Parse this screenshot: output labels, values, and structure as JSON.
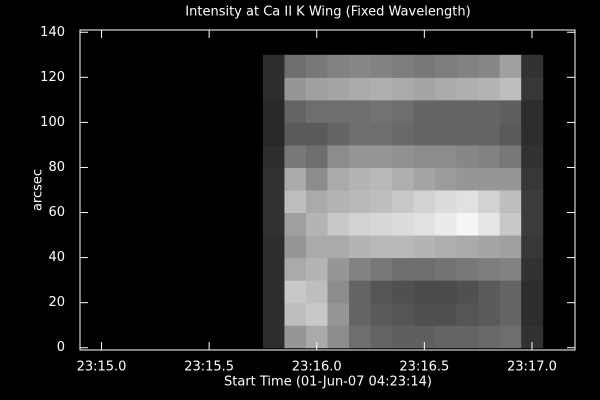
{
  "chart_data": {
    "type": "heatmap",
    "title": "Intensity at Ca II K Wing (Fixed Wavelength)",
    "x_label": "Start Time (01-Jun-07 04:23:14)",
    "y_label": "arcsec",
    "colormap": "gray",
    "zlim": [
      0,
      255
    ],
    "x": [
      15.8,
      15.9,
      16.0,
      16.1,
      16.2,
      16.3,
      16.4,
      16.5,
      16.6,
      16.7,
      16.8,
      16.9,
      17.0
    ],
    "y": [
      5,
      15,
      25,
      35,
      45,
      55,
      65,
      75,
      85,
      95,
      105,
      115,
      125
    ],
    "z": [
      [
        45,
        150,
        170,
        140,
        110,
        100,
        95,
        95,
        100,
        100,
        105,
        110,
        50
      ],
      [
        45,
        190,
        200,
        150,
        100,
        90,
        85,
        80,
        80,
        85,
        90,
        100,
        45
      ],
      [
        45,
        200,
        190,
        140,
        100,
        85,
        80,
        75,
        75,
        80,
        90,
        100,
        45
      ],
      [
        45,
        170,
        180,
        150,
        130,
        120,
        110,
        110,
        115,
        120,
        125,
        130,
        50
      ],
      [
        45,
        150,
        170,
        170,
        180,
        185,
        185,
        180,
        175,
        170,
        165,
        160,
        55
      ],
      [
        50,
        160,
        180,
        200,
        210,
        215,
        220,
        225,
        235,
        245,
        230,
        200,
        60
      ],
      [
        50,
        190,
        170,
        180,
        185,
        190,
        200,
        210,
        220,
        225,
        210,
        190,
        60
      ],
      [
        50,
        170,
        140,
        170,
        180,
        185,
        175,
        165,
        155,
        150,
        150,
        150,
        55
      ],
      [
        45,
        120,
        110,
        140,
        150,
        150,
        145,
        140,
        140,
        135,
        130,
        120,
        50
      ],
      [
        40,
        90,
        90,
        100,
        110,
        110,
        105,
        100,
        100,
        100,
        100,
        90,
        45
      ],
      [
        40,
        100,
        110,
        110,
        110,
        115,
        110,
        100,
        100,
        100,
        100,
        95,
        45
      ],
      [
        45,
        150,
        160,
        165,
        170,
        175,
        170,
        165,
        170,
        175,
        180,
        190,
        55
      ],
      [
        45,
        110,
        120,
        130,
        135,
        130,
        125,
        120,
        125,
        130,
        135,
        160,
        50
      ]
    ],
    "xlim": [
      14.9,
      17.2
    ],
    "ylim": [
      -1,
      141
    ],
    "xticks": [
      {
        "value": 15.0,
        "label": "23:15.0"
      },
      {
        "value": 15.5,
        "label": "23:15.5"
      },
      {
        "value": 16.0,
        "label": "23:16.0"
      },
      {
        "value": 16.5,
        "label": "23:16.5"
      },
      {
        "value": 17.0,
        "label": "23:17.0"
      }
    ],
    "yticks": [
      0,
      20,
      40,
      60,
      80,
      100,
      120,
      140
    ]
  }
}
